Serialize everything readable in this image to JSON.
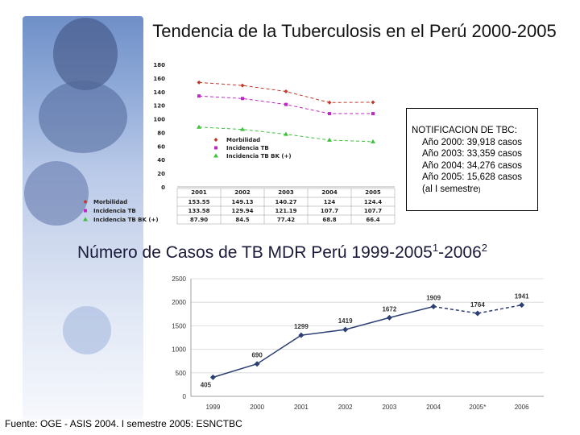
{
  "title": "Tendencia de la Tuberculosis en el Perú  2000-2005",
  "title2": {
    "main": "Número de Casos de TB MDR Perú 1999-2005",
    "sup1": "1",
    "mid": "-2006",
    "sup2": "2"
  },
  "notification_box": {
    "heading": "NOTIFICACION  DE TBC:",
    "lines": [
      "Año 2000: 39,918 casos",
      "Año 2003: 33,359 casos",
      "Año 2004: 34,276 casos",
      "Año 2005: 15,628 casos"
    ],
    "tail_main": "(al I semestre",
    "tail_paren": ")"
  },
  "footer": "Fuente: OGE - ASIS 2004. I semestre 2005: ESNCTBC",
  "chart_data": [
    {
      "type": "line",
      "title": "Tendencia de la Tuberculosis en el Perú 2000-2005",
      "categories": [
        "2001",
        "2002",
        "2003",
        "2004",
        "2005"
      ],
      "ylim": [
        0,
        180
      ],
      "yticks": [
        "0",
        "20",
        "40",
        "60",
        "80",
        "100",
        "120",
        "140",
        "160",
        "180"
      ],
      "series": [
        {
          "name": "Morbilidad",
          "values": [
            153.55,
            149.13,
            140.27,
            124,
            124.4
          ],
          "labels": [
            "153.55",
            "149.13",
            "140.27",
            "124",
            "124.4"
          ],
          "color": "#c0392b"
        },
        {
          "name": "Incidencia TB",
          "values": [
            133.58,
            129.94,
            121.19,
            107.7,
            107.7
          ],
          "labels": [
            "133.58",
            "129.94",
            "121.19",
            "107.7",
            "107.7"
          ],
          "color": "#c026c6"
        },
        {
          "name": "Incidencia TB BK (+)",
          "values": [
            87.9,
            84.5,
            77.42,
            68.8,
            66.4
          ],
          "labels": [
            "87.90",
            "84.5",
            "77.42",
            "68.8",
            "66.4"
          ],
          "color": "#3cc23c"
        }
      ]
    },
    {
      "type": "line",
      "title": "Número de Casos de TB MDR Perú 1999-2005-2006",
      "categories": [
        "1999",
        "2000",
        "2001",
        "2002",
        "2003",
        "2004",
        "2005*",
        "2006"
      ],
      "values": [
        405,
        690,
        1299,
        1419,
        1672,
        1909,
        1764,
        1941
      ],
      "labels": [
        "405",
        "690",
        "1299",
        "1419",
        "1672",
        "1909",
        "1764",
        "1941"
      ],
      "ylim": [
        0,
        2500
      ],
      "yticks": [
        "0",
        "500",
        "1000",
        "1500",
        "2000",
        "2500"
      ],
      "projected_from_index": 6,
      "color": "#2b3f73"
    }
  ]
}
